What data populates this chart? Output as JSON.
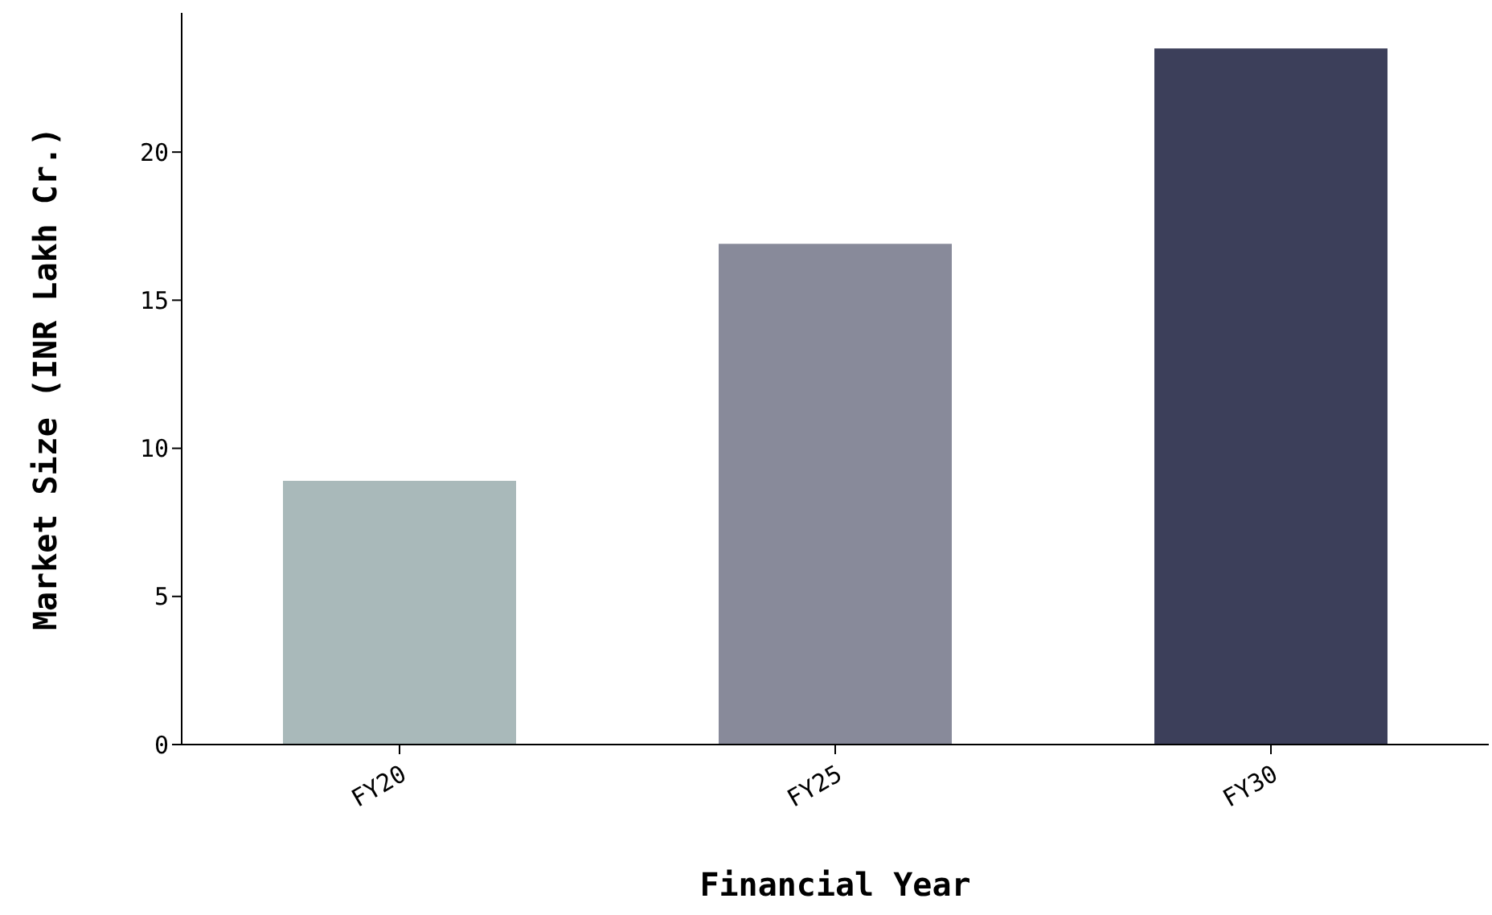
{
  "chart_data": {
    "type": "bar",
    "xlabel": "Financial Year",
    "ylabel": "Market Size (INR Lakh Cr.)",
    "categories": [
      "FY20",
      "FY25",
      "FY30"
    ],
    "values": [
      8.9,
      16.9,
      23.5
    ],
    "colors": [
      "#a9b9ba",
      "#888a9a",
      "#3c3f5a"
    ],
    "ylim": [
      0,
      24.7
    ],
    "yticks": [
      0,
      5,
      10,
      15,
      20
    ],
    "grid": false,
    "legend": false
  }
}
